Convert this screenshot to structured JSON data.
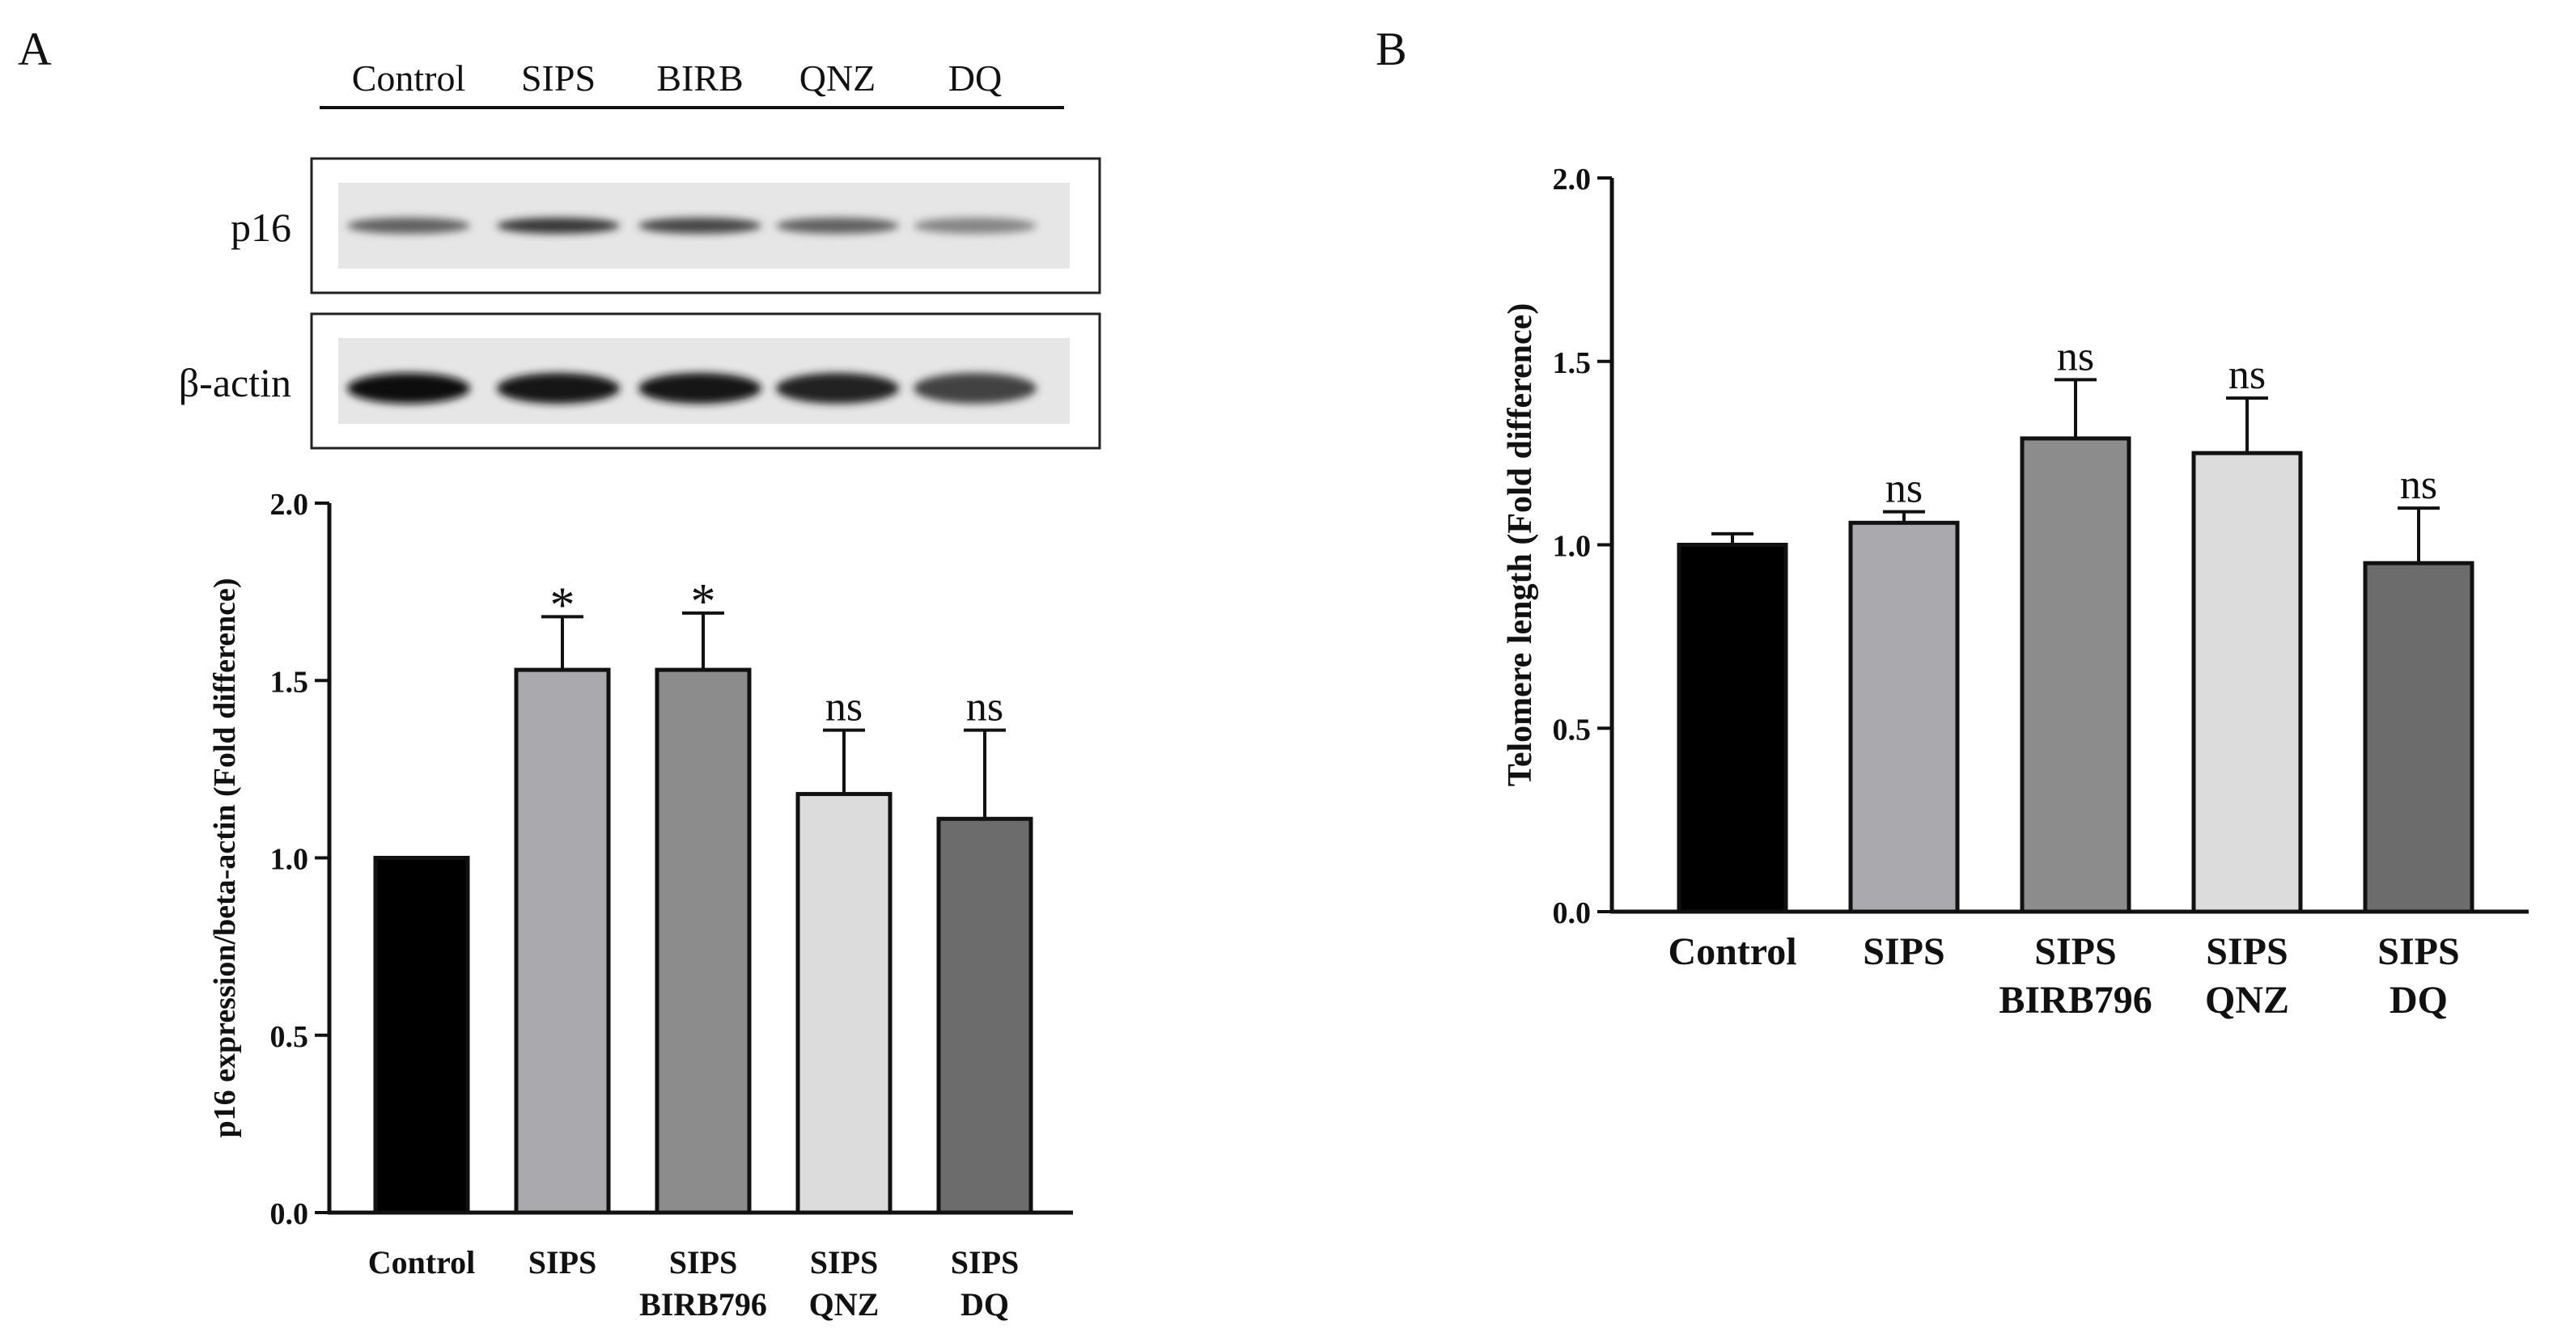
{
  "panels": {
    "a_label": "A",
    "b_label": "B"
  },
  "blot": {
    "lanes": [
      "Control",
      "SIPS",
      "BIRB",
      "QNZ",
      "DQ"
    ],
    "rows": [
      {
        "label": "p16",
        "band_darkness": [
          0.62,
          0.78,
          0.72,
          0.62,
          0.48
        ]
      },
      {
        "label": "β-actin",
        "band_darkness": [
          0.95,
          0.92,
          0.93,
          0.86,
          0.74
        ]
      }
    ]
  },
  "chart_data": [
    {
      "type": "bar",
      "panel": "A",
      "categories": [
        [
          "Control"
        ],
        [
          "SIPS"
        ],
        [
          "SIPS",
          "BIRB796"
        ],
        [
          "SIPS",
          "QNZ"
        ],
        [
          "SIPS",
          "DQ"
        ]
      ],
      "values": [
        1.0,
        1.53,
        1.53,
        1.18,
        1.11
      ],
      "errors": [
        0.0,
        0.15,
        0.16,
        0.18,
        0.25
      ],
      "annotations": [
        "",
        "*",
        "*",
        "ns",
        "ns"
      ],
      "colors": [
        "#000000",
        "#a9a9ae",
        "#8c8c8c",
        "#dcdcdc",
        "#6c6c6c"
      ],
      "ylabel": "p16 expression/beta-actin (Fold difference)",
      "ylim": [
        0,
        2.0
      ],
      "yticks": [
        "0.0",
        "0.5",
        "1.0",
        "1.5",
        "2.0"
      ]
    },
    {
      "type": "bar",
      "panel": "B",
      "categories": [
        [
          "Control"
        ],
        [
          "SIPS"
        ],
        [
          "SIPS",
          "BIRB796"
        ],
        [
          "SIPS",
          "QNZ"
        ],
        [
          "SIPS",
          "DQ"
        ]
      ],
      "values": [
        1.0,
        1.06,
        1.29,
        1.25,
        0.95
      ],
      "errors": [
        0.03,
        0.03,
        0.16,
        0.15,
        0.15
      ],
      "annotations": [
        "",
        "ns",
        "ns",
        "ns",
        "ns"
      ],
      "colors": [
        "#000000",
        "#a9a9ae",
        "#8c8c8c",
        "#dcdcdc",
        "#6c6c6c"
      ],
      "ylabel": "Telomere length (Fold difference)",
      "ylim": [
        0,
        2.0
      ],
      "yticks": [
        "0.0",
        "0.5",
        "1.0",
        "1.5",
        "2.0"
      ]
    }
  ]
}
